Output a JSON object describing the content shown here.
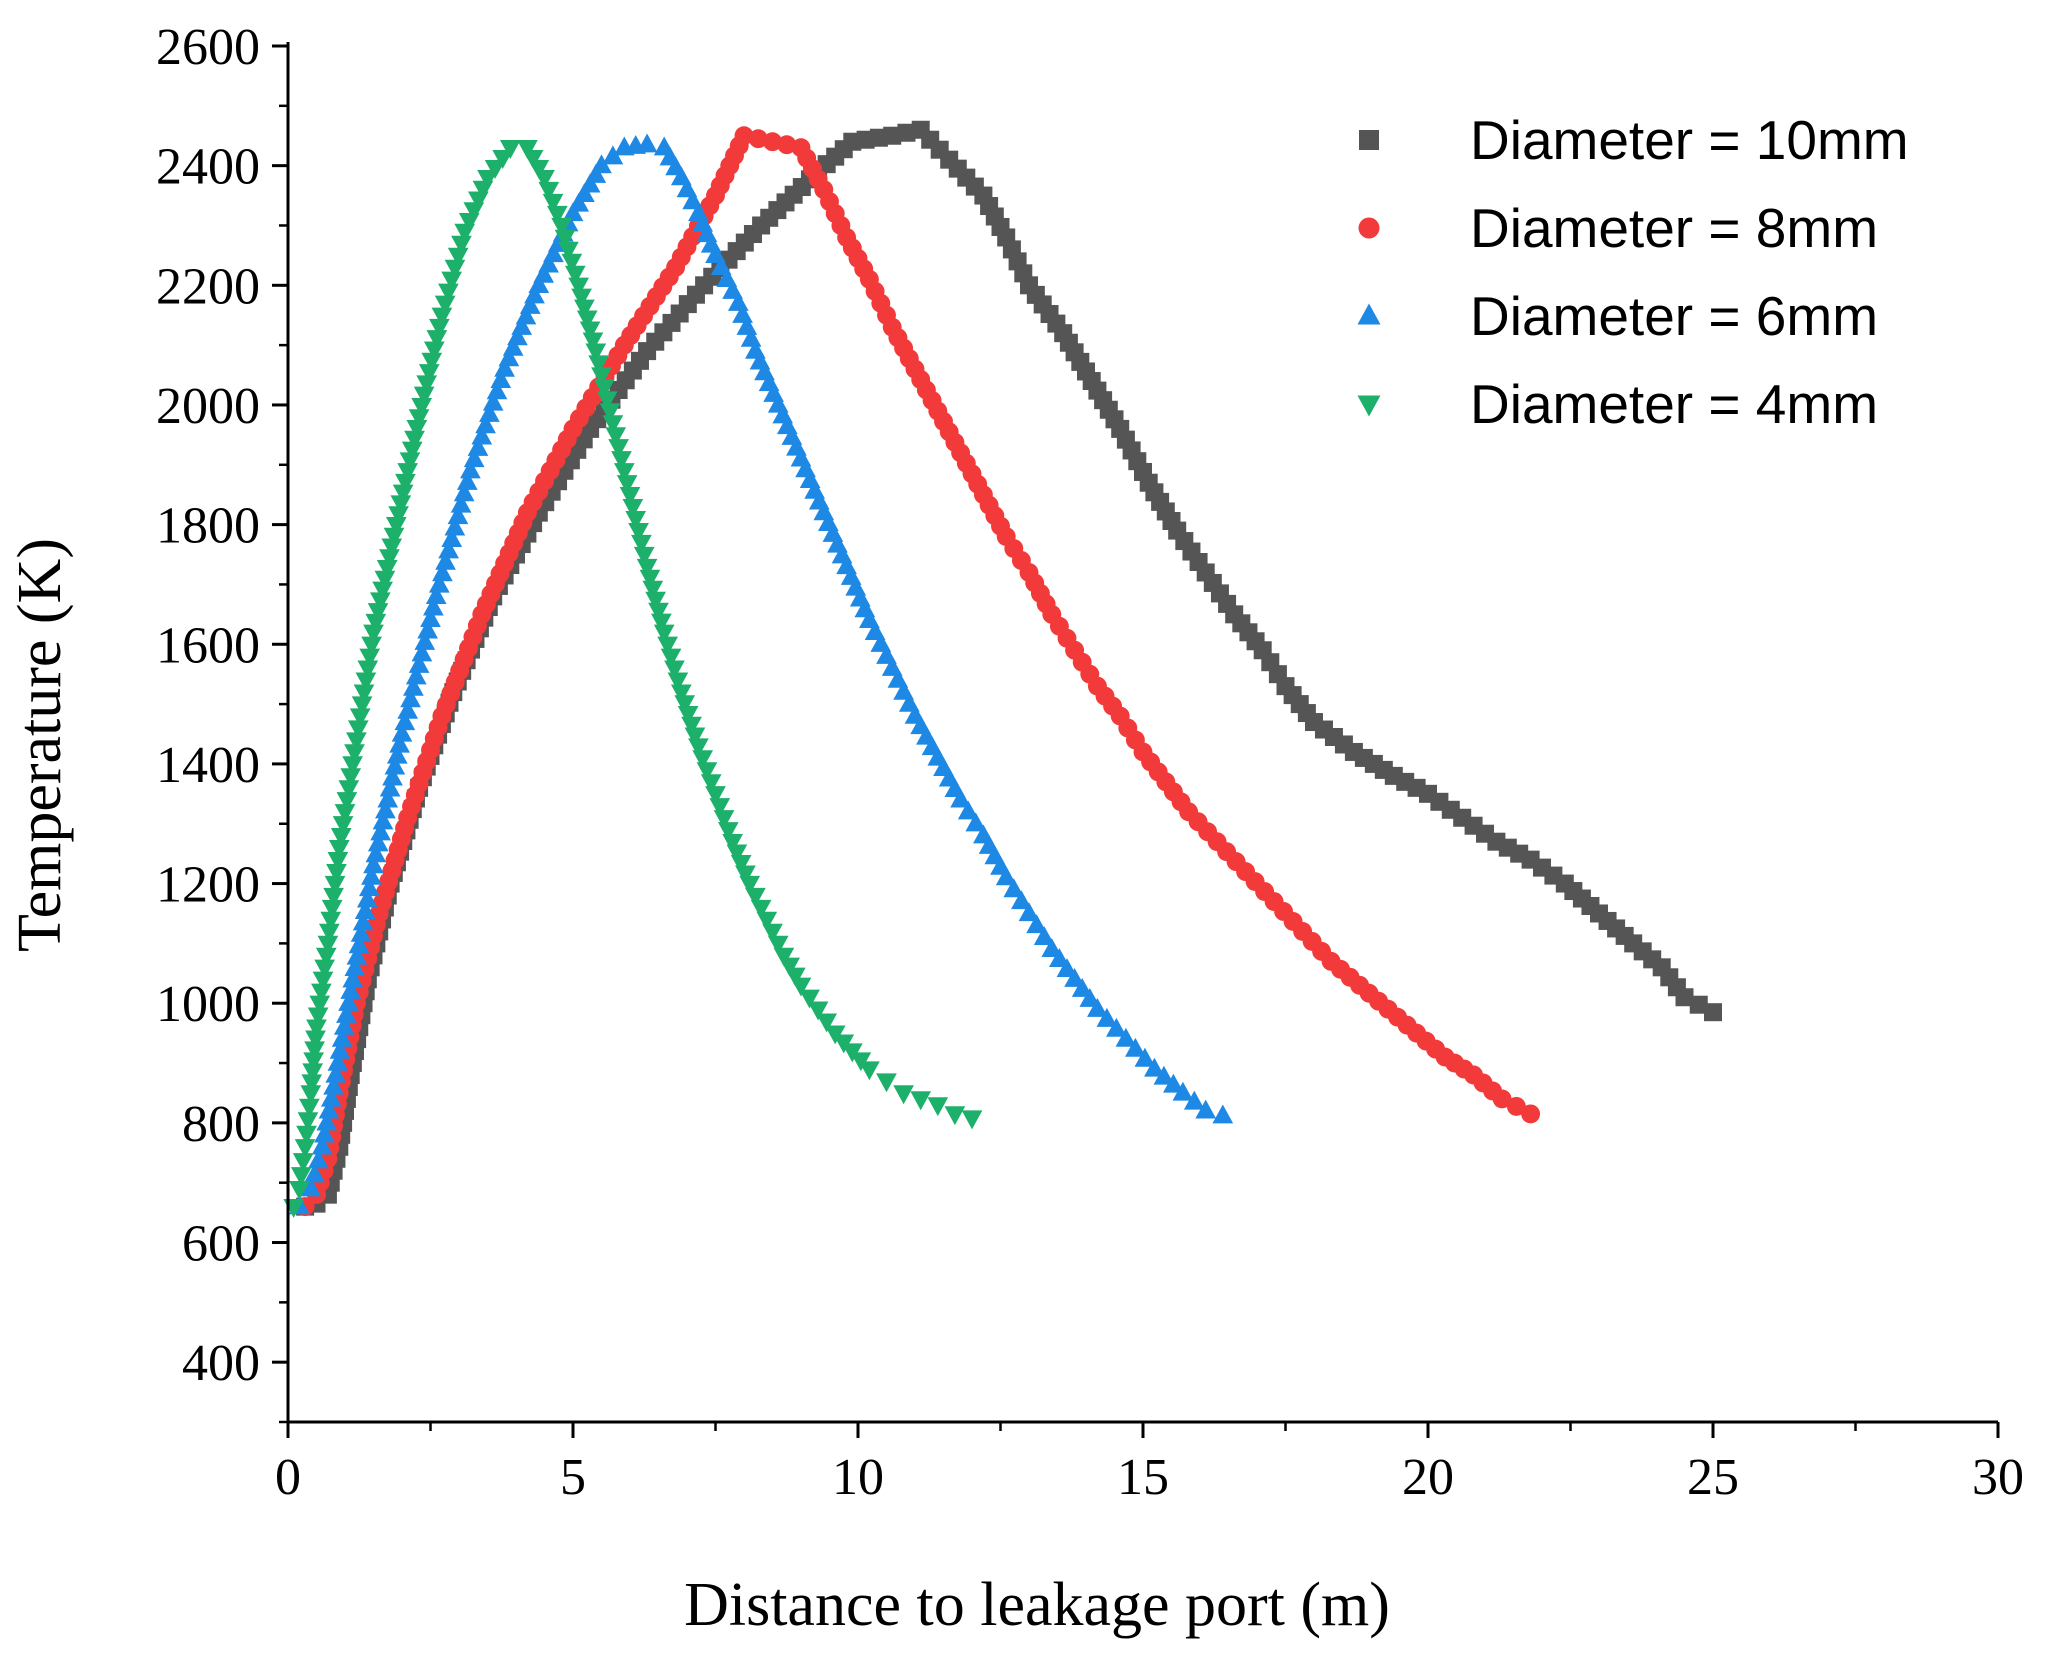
{
  "chart_data": {
    "type": "scatter",
    "title": "",
    "xlabel": "Distance to leakage port (m)",
    "ylabel": "Temperature (K)",
    "xlim": [
      0,
      30
    ],
    "ylim": [
      300,
      2600
    ],
    "xticks": [
      0,
      5,
      10,
      15,
      20,
      25,
      30
    ],
    "yticks": [
      400,
      600,
      800,
      1000,
      1200,
      1400,
      1600,
      1800,
      2000,
      2200,
      2400,
      2600
    ],
    "legend_position": "top-right",
    "series": [
      {
        "name": "Diameter = 10mm",
        "color": "#555555",
        "marker": "square",
        "points": [
          [
            0.3,
            660
          ],
          [
            0.5,
            665
          ],
          [
            0.7,
            680
          ],
          [
            0.9,
            760
          ],
          [
            1.1,
            880
          ],
          [
            1.4,
            1040
          ],
          [
            1.8,
            1200
          ],
          [
            2.3,
            1360
          ],
          [
            2.9,
            1520
          ],
          [
            3.6,
            1680
          ],
          [
            4.4,
            1820
          ],
          [
            5.3,
            1960
          ],
          [
            6.3,
            2090
          ],
          [
            7.3,
            2200
          ],
          [
            8.3,
            2300
          ],
          [
            9.3,
            2390
          ],
          [
            9.9,
            2440
          ],
          [
            10.6,
            2450
          ],
          [
            11.1,
            2460
          ],
          [
            11.6,
            2410
          ],
          [
            12.2,
            2350
          ],
          [
            12.6,
            2280
          ],
          [
            13.0,
            2200
          ],
          [
            13.6,
            2120
          ],
          [
            14.1,
            2040
          ],
          [
            14.6,
            1960
          ],
          [
            15.1,
            1870
          ],
          [
            15.6,
            1790
          ],
          [
            16.1,
            1720
          ],
          [
            16.6,
            1650
          ],
          [
            17.1,
            1590
          ],
          [
            17.5,
            1530
          ],
          [
            18.0,
            1470
          ],
          [
            18.7,
            1420
          ],
          [
            19.4,
            1380
          ],
          [
            20.0,
            1350
          ],
          [
            20.6,
            1310
          ],
          [
            21.2,
            1270
          ],
          [
            21.8,
            1240
          ],
          [
            22.4,
            1200
          ],
          [
            23.0,
            1150
          ],
          [
            23.6,
            1100
          ],
          [
            24.1,
            1060
          ],
          [
            24.5,
            1010
          ],
          [
            25.0,
            985
          ]
        ]
      },
      {
        "name": "Diameter = 8mm",
        "color": "#f23a3a",
        "marker": "circle",
        "points": [
          [
            0.3,
            660
          ],
          [
            0.5,
            680
          ],
          [
            0.7,
            740
          ],
          [
            0.9,
            850
          ],
          [
            1.2,
            1000
          ],
          [
            1.6,
            1150
          ],
          [
            2.1,
            1310
          ],
          [
            2.7,
            1480
          ],
          [
            3.4,
            1650
          ],
          [
            4.2,
            1820
          ],
          [
            5.0,
            1960
          ],
          [
            5.9,
            2100
          ],
          [
            6.8,
            2230
          ],
          [
            7.5,
            2350
          ],
          [
            8.0,
            2450
          ],
          [
            8.5,
            2440
          ],
          [
            9.0,
            2430
          ],
          [
            9.4,
            2360
          ],
          [
            9.8,
            2280
          ],
          [
            10.2,
            2210
          ],
          [
            10.6,
            2130
          ],
          [
            11.0,
            2060
          ],
          [
            11.4,
            1990
          ],
          [
            11.8,
            1920
          ],
          [
            12.2,
            1850
          ],
          [
            12.6,
            1780
          ],
          [
            13.0,
            1720
          ],
          [
            13.4,
            1650
          ],
          [
            13.8,
            1590
          ],
          [
            14.2,
            1530
          ],
          [
            14.6,
            1480
          ],
          [
            15.0,
            1420
          ],
          [
            15.4,
            1370
          ],
          [
            15.8,
            1320
          ],
          [
            16.3,
            1270
          ],
          [
            16.8,
            1220
          ],
          [
            17.3,
            1170
          ],
          [
            17.8,
            1120
          ],
          [
            18.3,
            1070
          ],
          [
            18.8,
            1030
          ],
          [
            19.3,
            990
          ],
          [
            19.8,
            950
          ],
          [
            20.3,
            910
          ],
          [
            20.8,
            880
          ],
          [
            21.3,
            840
          ],
          [
            21.8,
            815
          ]
        ]
      },
      {
        "name": "Diameter = 6mm",
        "color": "#1e88e5",
        "marker": "triangle-up",
        "points": [
          [
            0.2,
            660
          ],
          [
            0.4,
            690
          ],
          [
            0.6,
            760
          ],
          [
            0.8,
            860
          ],
          [
            1.1,
            1020
          ],
          [
            1.5,
            1230
          ],
          [
            2.0,
            1450
          ],
          [
            2.6,
            1680
          ],
          [
            3.2,
            1890
          ],
          [
            3.8,
            2060
          ],
          [
            4.4,
            2200
          ],
          [
            5.0,
            2320
          ],
          [
            5.5,
            2400
          ],
          [
            5.9,
            2430
          ],
          [
            6.3,
            2435
          ],
          [
            6.6,
            2430
          ],
          [
            6.9,
            2380
          ],
          [
            7.2,
            2320
          ],
          [
            7.5,
            2250
          ],
          [
            7.9,
            2170
          ],
          [
            8.2,
            2090
          ],
          [
            8.6,
            2000
          ],
          [
            9.0,
            1910
          ],
          [
            9.4,
            1820
          ],
          [
            9.8,
            1730
          ],
          [
            10.2,
            1640
          ],
          [
            10.6,
            1560
          ],
          [
            11.0,
            1480
          ],
          [
            11.4,
            1410
          ],
          [
            11.8,
            1340
          ],
          [
            12.2,
            1280
          ],
          [
            12.6,
            1210
          ],
          [
            13.0,
            1150
          ],
          [
            13.4,
            1090
          ],
          [
            13.8,
            1040
          ],
          [
            14.2,
            990
          ],
          [
            14.7,
            940
          ],
          [
            15.2,
            890
          ],
          [
            15.7,
            850
          ],
          [
            16.1,
            820
          ],
          [
            16.4,
            812
          ]
        ]
      },
      {
        "name": "Diameter = 4mm",
        "color": "#1db06a",
        "marker": "triangle-down",
        "points": [
          [
            0.1,
            660
          ],
          [
            0.2,
            690
          ],
          [
            0.3,
            760
          ],
          [
            0.4,
            850
          ],
          [
            0.5,
            960
          ],
          [
            0.7,
            1100
          ],
          [
            0.9,
            1260
          ],
          [
            1.2,
            1440
          ],
          [
            1.5,
            1620
          ],
          [
            1.9,
            1800
          ],
          [
            2.3,
            1980
          ],
          [
            2.7,
            2150
          ],
          [
            3.1,
            2290
          ],
          [
            3.5,
            2380
          ],
          [
            3.9,
            2430
          ],
          [
            4.2,
            2430
          ],
          [
            4.5,
            2380
          ],
          [
            4.8,
            2300
          ],
          [
            5.1,
            2200
          ],
          [
            5.4,
            2090
          ],
          [
            5.7,
            1970
          ],
          [
            6.0,
            1850
          ],
          [
            6.3,
            1730
          ],
          [
            6.6,
            1620
          ],
          [
            6.9,
            1520
          ],
          [
            7.2,
            1430
          ],
          [
            7.5,
            1350
          ],
          [
            7.8,
            1270
          ],
          [
            8.1,
            1200
          ],
          [
            8.4,
            1140
          ],
          [
            8.7,
            1080
          ],
          [
            9.0,
            1030
          ],
          [
            9.3,
            990
          ],
          [
            9.6,
            950
          ],
          [
            9.9,
            920
          ],
          [
            10.2,
            890
          ],
          [
            10.5,
            870
          ],
          [
            10.8,
            850
          ],
          [
            11.1,
            840
          ],
          [
            11.4,
            830
          ],
          [
            11.7,
            815
          ],
          [
            12.0,
            808
          ]
        ]
      }
    ]
  }
}
